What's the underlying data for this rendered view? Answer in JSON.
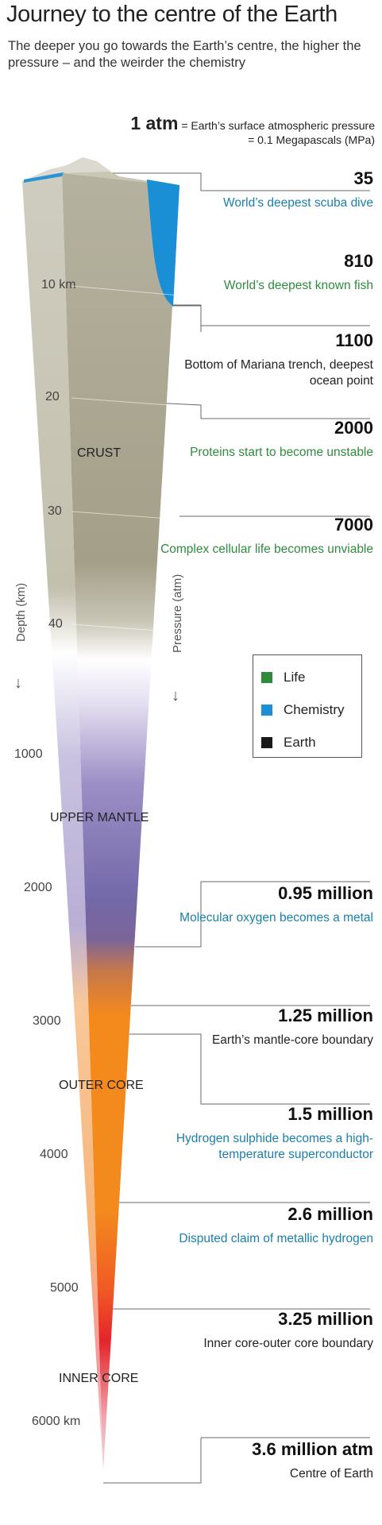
{
  "header": {
    "title": "Journey to the centre of the Earth",
    "subtitle": "The deeper you go towards the Earth’s centre, the higher the pressure – and the weirder the chemistry"
  },
  "surface": {
    "value": "1 atm",
    "line1": "= Earth’s surface atmospheric pressure",
    "line2": "= 0.1 Megapascals (MPa)"
  },
  "axes": {
    "depth_label": "Depth (km)",
    "pressure_label": "Pressure (atm)",
    "arrow": "↓"
  },
  "depth_ticks": [
    "10 km",
    "20",
    "30",
    "40",
    "1000",
    "2000",
    "3000",
    "4000",
    "5000",
    "6000 km"
  ],
  "zones": [
    "CRUST",
    "UPPER MANTLE",
    "OUTER CORE",
    "INNER CORE"
  ],
  "events": [
    {
      "value": "35",
      "desc": "World’s deepest scuba dive",
      "category": "chemistry"
    },
    {
      "value": "810",
      "desc": "World’s deepest known fish",
      "category": "life"
    },
    {
      "value": "1100",
      "desc": "Bottom of Mariana trench, deepest ocean point",
      "category": "earth"
    },
    {
      "value": "2000",
      "desc": "Proteins start to become unstable",
      "category": "life"
    },
    {
      "value": "7000",
      "desc": "Complex cellular life becomes unviable",
      "category": "life"
    },
    {
      "value": "0.95 million",
      "desc": "Molecular oxygen becomes a metal",
      "category": "chemistry"
    },
    {
      "value": "1.25 million",
      "desc": "Earth’s mantle-core boundary",
      "category": "earth"
    },
    {
      "value": "1.5 million",
      "desc": "Hydrogen sulphide becomes a high-temperature superconductor",
      "category": "chemistry"
    },
    {
      "value": "2.6 million",
      "desc": "Disputed claim of metallic hydrogen",
      "category": "chemistry"
    },
    {
      "value": "3.25 million",
      "desc": "Inner core-outer core boundary",
      "category": "earth"
    },
    {
      "value": "3.6 million atm",
      "desc": "Centre of Earth",
      "category": "earth"
    }
  ],
  "legend": [
    {
      "label": "Life",
      "color": "#2f8b3d"
    },
    {
      "label": "Chemistry",
      "color": "#1a8fd6"
    },
    {
      "label": "Earth",
      "color": "#1a1a1a"
    }
  ],
  "colors": {
    "life": "#2f8b3d",
    "chemistry": "#1a7fab",
    "earth": "#222222",
    "ocean": "#1a8fd6",
    "crust": "#aeaa95",
    "mantle": "#7d6fae",
    "outer_core": "#f28a1e",
    "inner_core": "#e8212a"
  }
}
